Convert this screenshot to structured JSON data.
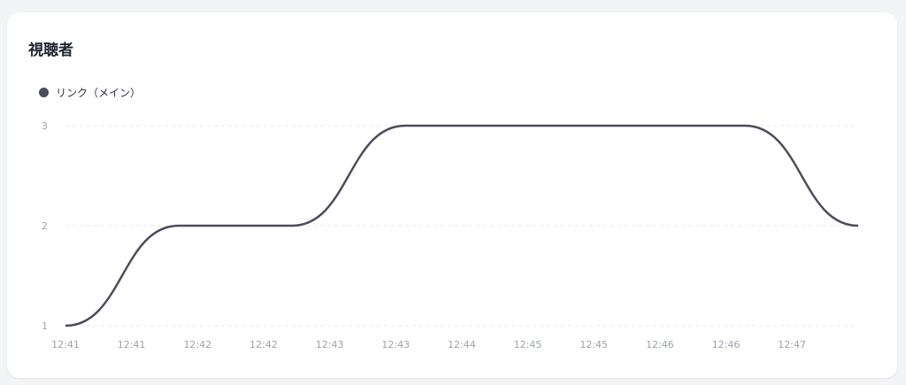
{
  "card": {
    "title": "視聴者"
  },
  "chart_data": {
    "type": "line",
    "title": "視聴者",
    "legend_position": "top-left",
    "series": [
      {
        "name": "リンク（メイン）",
        "color": "#4b4d5c",
        "values": [
          1,
          2,
          2,
          3,
          3,
          3,
          3,
          2
        ]
      }
    ],
    "x_tick_labels": [
      "12:41",
      "12:41",
      "12:42",
      "12:42",
      "12:43",
      "12:43",
      "12:44",
      "12:45",
      "12:45",
      "12:46",
      "12:46",
      "12:47"
    ],
    "y_ticks": [
      1,
      2,
      3
    ],
    "ylim": [
      1,
      3
    ],
    "grid": "horizontal dashed",
    "curve": "smooth"
  }
}
